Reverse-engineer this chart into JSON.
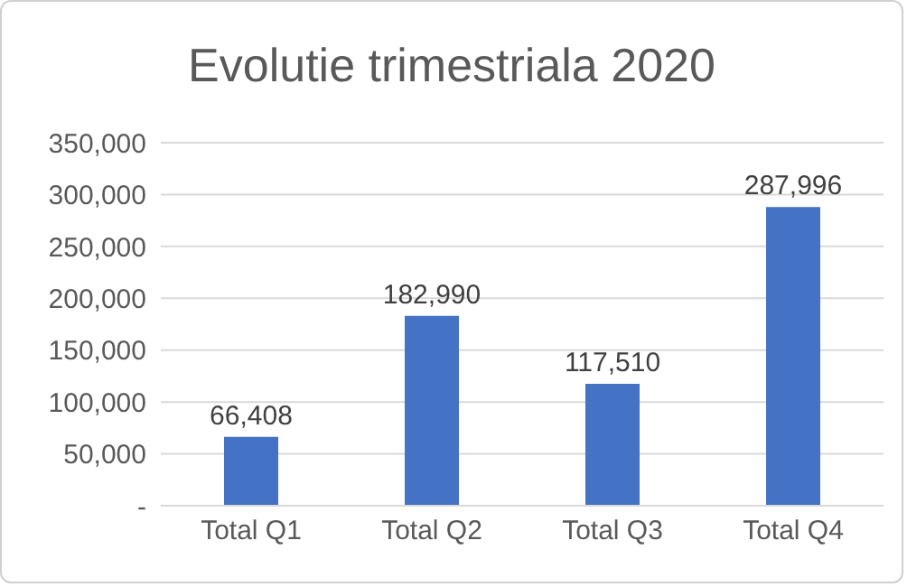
{
  "chart_data": {
    "type": "bar",
    "title": "Evolutie trimestriala 2020",
    "categories": [
      "Total Q1",
      "Total Q2",
      "Total Q3",
      "Total Q4"
    ],
    "values": [
      66408,
      182990,
      117510,
      287996
    ],
    "value_labels": [
      "66,408",
      "182,990",
      "117,510",
      "287,996"
    ],
    "color": "#4472c4",
    "ylim": [
      0,
      350000
    ],
    "yticks": [
      {
        "value": 0,
        "label": "-"
      },
      {
        "value": 50000,
        "label": "50,000"
      },
      {
        "value": 100000,
        "label": "100,000"
      },
      {
        "value": 150000,
        "label": "150,000"
      },
      {
        "value": 200000,
        "label": "200,000"
      },
      {
        "value": 250000,
        "label": "250,000"
      },
      {
        "value": 300000,
        "label": "300,000"
      },
      {
        "value": 350000,
        "label": "350,000"
      }
    ],
    "grid": "y"
  }
}
